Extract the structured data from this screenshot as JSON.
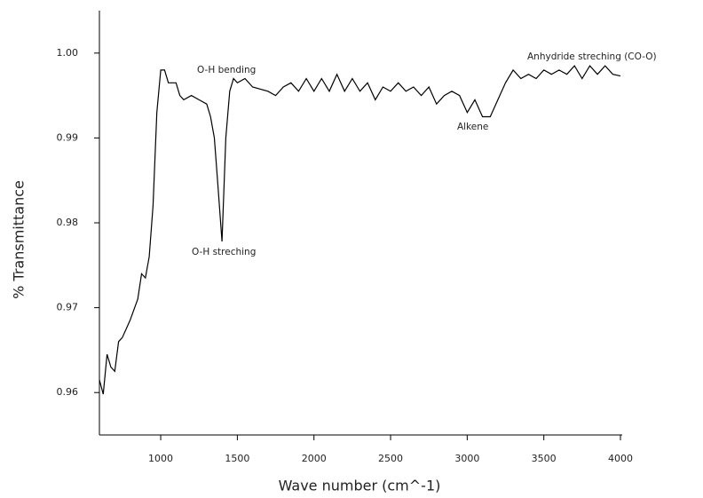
{
  "chart_data": {
    "type": "line",
    "x_label": "Wave number (cm^-1)",
    "y_label": "% Transmittance",
    "x": [
      600,
      625,
      650,
      675,
      700,
      725,
      750,
      800,
      850,
      875,
      900,
      925,
      950,
      975,
      1000,
      1025,
      1050,
      1100,
      1125,
      1150,
      1200,
      1250,
      1300,
      1325,
      1350,
      1375,
      1400,
      1425,
      1450,
      1475,
      1500,
      1550,
      1600,
      1700,
      1750,
      1800,
      1850,
      1900,
      1950,
      2000,
      2050,
      2100,
      2150,
      2200,
      2250,
      2300,
      2350,
      2400,
      2450,
      2500,
      2550,
      2600,
      2650,
      2700,
      2750,
      2800,
      2850,
      2900,
      2950,
      3000,
      3050,
      3100,
      3150,
      3200,
      3250,
      3300,
      3350,
      3400,
      3450,
      3500,
      3550,
      3600,
      3650,
      3700,
      3750,
      3800,
      3850,
      3900,
      3950,
      4000
    ],
    "series": [
      {
        "color": "#000000",
        "values": [
          0.9615,
          0.9598,
          0.9645,
          0.963,
          0.9625,
          0.966,
          0.9665,
          0.9685,
          0.971,
          0.974,
          0.9735,
          0.976,
          0.982,
          0.993,
          0.998,
          0.998,
          0.9965,
          0.9965,
          0.995,
          0.9945,
          0.995,
          0.9945,
          0.994,
          0.9925,
          0.99,
          0.984,
          0.9778,
          0.99,
          0.9955,
          0.997,
          0.9965,
          0.997,
          0.996,
          0.9955,
          0.995,
          0.996,
          0.9965,
          0.9955,
          0.997,
          0.9955,
          0.997,
          0.9955,
          0.9975,
          0.9955,
          0.997,
          0.9955,
          0.9965,
          0.9945,
          0.996,
          0.9955,
          0.9965,
          0.9955,
          0.996,
          0.995,
          0.996,
          0.994,
          0.995,
          0.9955,
          0.995,
          0.993,
          0.9945,
          0.9925,
          0.9925,
          0.9945,
          0.9965,
          0.998,
          0.997,
          0.9975,
          0.997,
          0.998,
          0.9975,
          0.998,
          0.9975,
          0.9985,
          0.997,
          0.9985,
          0.9975,
          0.9985,
          0.9975,
          0.9973
        ]
      }
    ],
    "xlim": [
      600,
      4000
    ],
    "ylim": [
      0.955,
      1.005
    ],
    "xticks": [
      1000,
      1500,
      2000,
      2500,
      3000,
      3500,
      4000
    ],
    "yticks": [
      {
        "value": 1,
        "label": "1.00"
      },
      0.99,
      0.98,
      0.97,
      0.96
    ],
    "annotations": [
      "O-H bending",
      "O-H streching",
      "Alkene",
      "Anhydride streching (CO-O)"
    ]
  }
}
